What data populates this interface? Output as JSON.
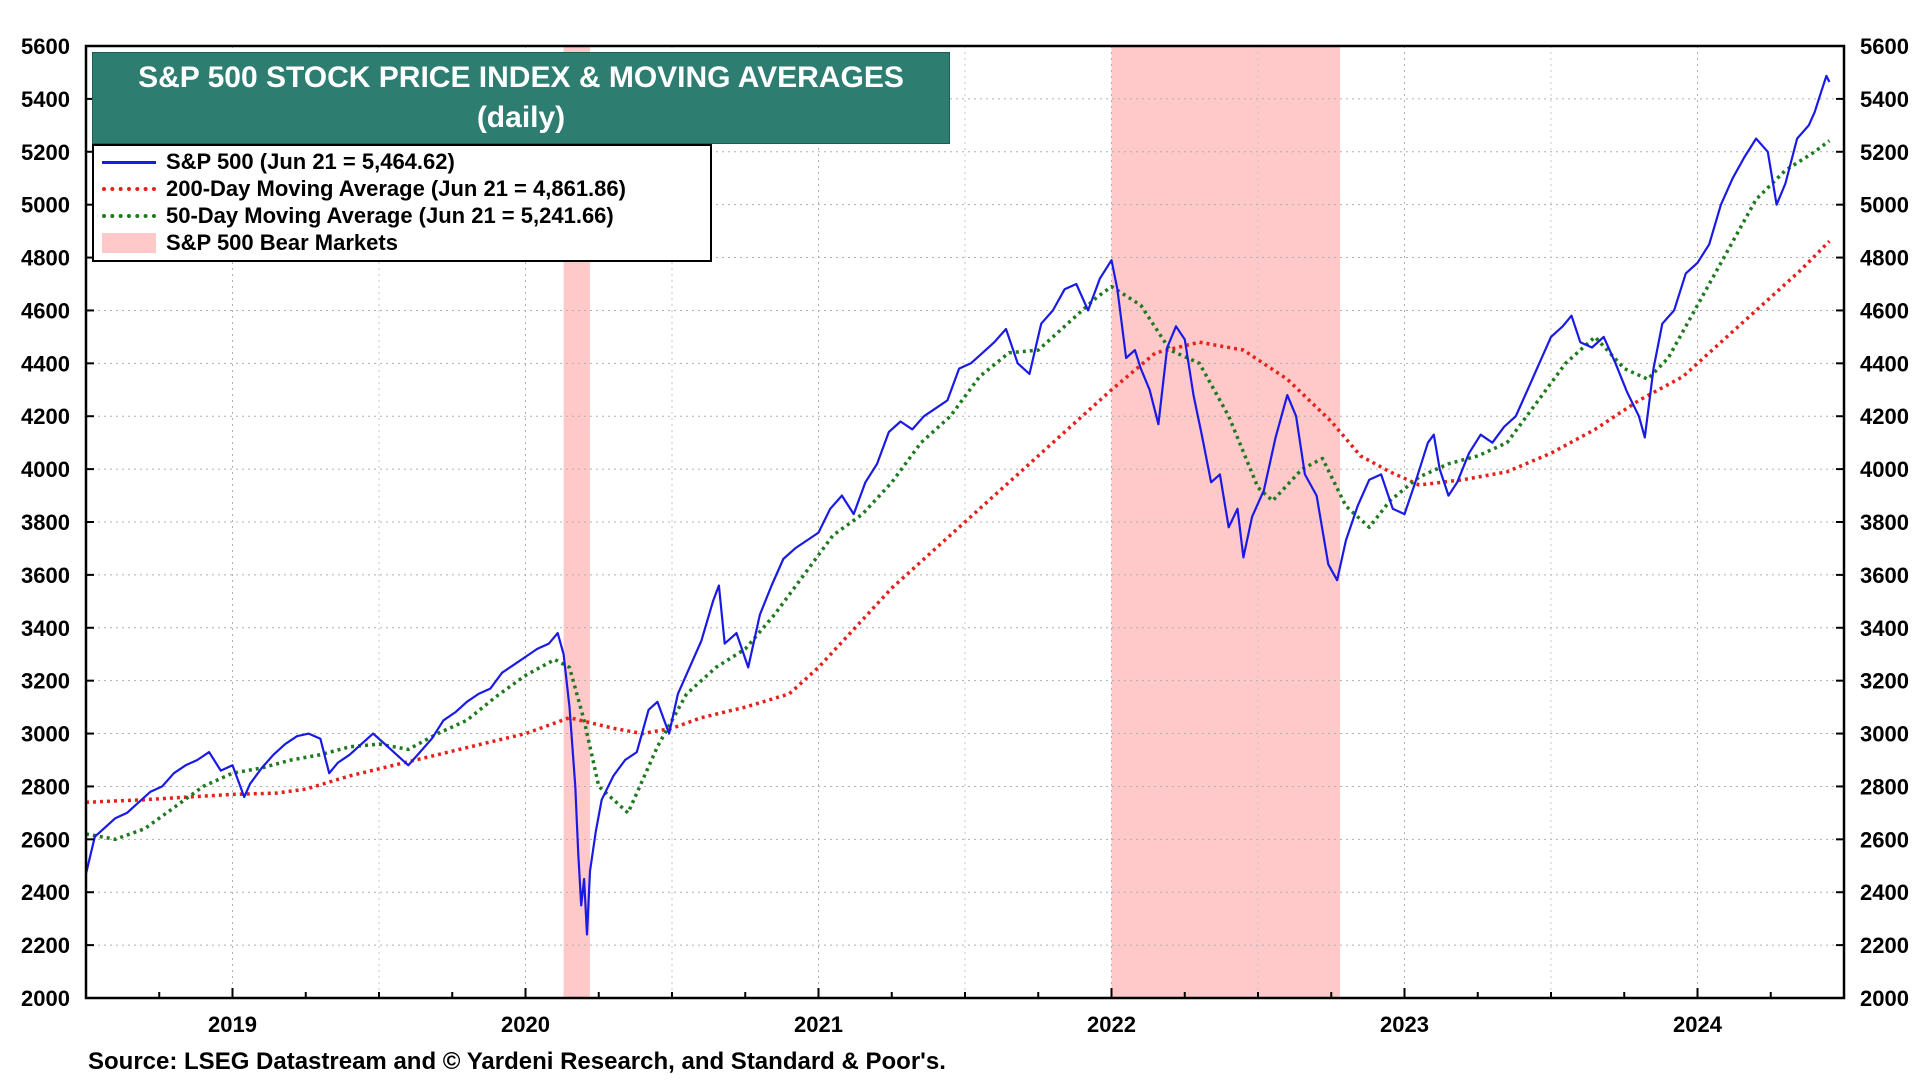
{
  "chart_data": {
    "type": "line",
    "title": "S&P 500 STOCK PRICE INDEX & MOVING AVERAGES",
    "subtitle": "(daily)",
    "xlabel": "",
    "ylabel": "",
    "ylim": [
      2000,
      5600
    ],
    "y_ticks": [
      "2000",
      "2200",
      "2400",
      "2600",
      "2800",
      "3000",
      "3200",
      "3400",
      "3600",
      "3800",
      "4000",
      "4200",
      "4400",
      "4600",
      "4800",
      "5000",
      "5200",
      "5400",
      "5600"
    ],
    "x_range": [
      2018.5,
      2024.5
    ],
    "x_ticks": [
      {
        "value": 2019,
        "label": "2019"
      },
      {
        "value": 2020,
        "label": "2020"
      },
      {
        "value": 2021,
        "label": "2021"
      },
      {
        "value": 2022,
        "label": "2022"
      },
      {
        "value": 2023,
        "label": "2023"
      },
      {
        "value": 2024,
        "label": "2024"
      }
    ],
    "grid": true,
    "legend": [
      {
        "key": "sp500",
        "label": "S&P 500 (Jun 21 = 5,464.62)",
        "style": "solid",
        "color": "#1a1ae6"
      },
      {
        "key": "ma200",
        "label": "200-Day Moving Average (Jun 21 = 4,861.86)",
        "style": "dotted",
        "color": "#e6201a"
      },
      {
        "key": "ma50",
        "label": "50-Day Moving Average (Jun 21 = 5,241.66)",
        "style": "dotted",
        "color": "#1f7a1f"
      },
      {
        "key": "bear",
        "label": "S&P 500 Bear Markets",
        "style": "band",
        "color": "#ffc9c9"
      }
    ],
    "bear_markets": [
      {
        "start": 2020.13,
        "end": 2020.22
      },
      {
        "start": 2022.0,
        "end": 2022.78
      }
    ],
    "series": [
      {
        "name": "S&P 500",
        "color": "#1a1ae6",
        "style": "solid",
        "points": [
          [
            2018.5,
            2470
          ],
          [
            2018.53,
            2610
          ],
          [
            2018.56,
            2640
          ],
          [
            2018.6,
            2680
          ],
          [
            2018.64,
            2700
          ],
          [
            2018.68,
            2740
          ],
          [
            2018.72,
            2780
          ],
          [
            2018.76,
            2800
          ],
          [
            2018.8,
            2850
          ],
          [
            2018.84,
            2880
          ],
          [
            2018.88,
            2900
          ],
          [
            2018.92,
            2930
          ],
          [
            2018.96,
            2860
          ],
          [
            2019.0,
            2880
          ],
          [
            2019.04,
            2760
          ],
          [
            2019.06,
            2810
          ],
          [
            2019.1,
            2870
          ],
          [
            2019.14,
            2920
          ],
          [
            2019.18,
            2960
          ],
          [
            2019.22,
            2990
          ],
          [
            2019.26,
            3000
          ],
          [
            2019.3,
            2980
          ],
          [
            2019.33,
            2850
          ],
          [
            2019.36,
            2890
          ],
          [
            2019.4,
            2920
          ],
          [
            2019.44,
            2960
          ],
          [
            2019.48,
            3000
          ],
          [
            2019.52,
            2960
          ],
          [
            2019.56,
            2920
          ],
          [
            2019.6,
            2880
          ],
          [
            2019.64,
            2930
          ],
          [
            2019.68,
            2980
          ],
          [
            2019.72,
            3050
          ],
          [
            2019.76,
            3080
          ],
          [
            2019.8,
            3120
          ],
          [
            2019.84,
            3150
          ],
          [
            2019.88,
            3170
          ],
          [
            2019.92,
            3230
          ],
          [
            2019.96,
            3260
          ],
          [
            2020.0,
            3290
          ],
          [
            2020.04,
            3320
          ],
          [
            2020.08,
            3340
          ],
          [
            2020.11,
            3380
          ],
          [
            2020.13,
            3300
          ],
          [
            2020.15,
            3100
          ],
          [
            2020.17,
            2800
          ],
          [
            2020.18,
            2550
          ],
          [
            2020.19,
            2350
          ],
          [
            2020.2,
            2450
          ],
          [
            2020.21,
            2240
          ],
          [
            2020.22,
            2480
          ],
          [
            2020.24,
            2630
          ],
          [
            2020.26,
            2750
          ],
          [
            2020.3,
            2840
          ],
          [
            2020.34,
            2900
          ],
          [
            2020.38,
            2930
          ],
          [
            2020.42,
            3090
          ],
          [
            2020.45,
            3120
          ],
          [
            2020.49,
            3000
          ],
          [
            2020.52,
            3150
          ],
          [
            2020.56,
            3250
          ],
          [
            2020.6,
            3350
          ],
          [
            2020.64,
            3500
          ],
          [
            2020.66,
            3560
          ],
          [
            2020.68,
            3340
          ],
          [
            2020.72,
            3380
          ],
          [
            2020.76,
            3250
          ],
          [
            2020.8,
            3450
          ],
          [
            2020.84,
            3560
          ],
          [
            2020.88,
            3660
          ],
          [
            2020.92,
            3700
          ],
          [
            2020.96,
            3730
          ],
          [
            2021.0,
            3760
          ],
          [
            2021.04,
            3850
          ],
          [
            2021.08,
            3900
          ],
          [
            2021.12,
            3830
          ],
          [
            2021.16,
            3950
          ],
          [
            2021.2,
            4020
          ],
          [
            2021.24,
            4140
          ],
          [
            2021.28,
            4180
          ],
          [
            2021.32,
            4150
          ],
          [
            2021.36,
            4200
          ],
          [
            2021.4,
            4230
          ],
          [
            2021.44,
            4260
          ],
          [
            2021.48,
            4380
          ],
          [
            2021.52,
            4400
          ],
          [
            2021.56,
            4440
          ],
          [
            2021.6,
            4480
          ],
          [
            2021.64,
            4530
          ],
          [
            2021.68,
            4400
          ],
          [
            2021.72,
            4360
          ],
          [
            2021.76,
            4550
          ],
          [
            2021.8,
            4600
          ],
          [
            2021.84,
            4680
          ],
          [
            2021.88,
            4700
          ],
          [
            2021.92,
            4600
          ],
          [
            2021.96,
            4720
          ],
          [
            2022.0,
            4790
          ],
          [
            2022.02,
            4680
          ],
          [
            2022.05,
            4420
          ],
          [
            2022.08,
            4450
          ],
          [
            2022.1,
            4380
          ],
          [
            2022.13,
            4300
          ],
          [
            2022.16,
            4170
          ],
          [
            2022.19,
            4460
          ],
          [
            2022.22,
            4540
          ],
          [
            2022.25,
            4490
          ],
          [
            2022.28,
            4280
          ],
          [
            2022.31,
            4120
          ],
          [
            2022.34,
            3950
          ],
          [
            2022.37,
            3980
          ],
          [
            2022.4,
            3780
          ],
          [
            2022.43,
            3850
          ],
          [
            2022.45,
            3666
          ],
          [
            2022.48,
            3820
          ],
          [
            2022.52,
            3920
          ],
          [
            2022.56,
            4120
          ],
          [
            2022.6,
            4280
          ],
          [
            2022.63,
            4200
          ],
          [
            2022.66,
            3980
          ],
          [
            2022.7,
            3900
          ],
          [
            2022.74,
            3640
          ],
          [
            2022.77,
            3580
          ],
          [
            2022.8,
            3730
          ],
          [
            2022.84,
            3860
          ],
          [
            2022.88,
            3960
          ],
          [
            2022.92,
            3980
          ],
          [
            2022.96,
            3850
          ],
          [
            2023.0,
            3830
          ],
          [
            2023.04,
            3960
          ],
          [
            2023.08,
            4100
          ],
          [
            2023.1,
            4130
          ],
          [
            2023.12,
            4000
          ],
          [
            2023.15,
            3900
          ],
          [
            2023.18,
            3950
          ],
          [
            2023.22,
            4060
          ],
          [
            2023.26,
            4130
          ],
          [
            2023.3,
            4100
          ],
          [
            2023.34,
            4160
          ],
          [
            2023.38,
            4200
          ],
          [
            2023.42,
            4300
          ],
          [
            2023.46,
            4400
          ],
          [
            2023.5,
            4500
          ],
          [
            2023.54,
            4540
          ],
          [
            2023.57,
            4580
          ],
          [
            2023.6,
            4480
          ],
          [
            2023.64,
            4460
          ],
          [
            2023.68,
            4500
          ],
          [
            2023.72,
            4400
          ],
          [
            2023.76,
            4290
          ],
          [
            2023.8,
            4200
          ],
          [
            2023.82,
            4120
          ],
          [
            2023.85,
            4380
          ],
          [
            2023.88,
            4550
          ],
          [
            2023.92,
            4600
          ],
          [
            2023.96,
            4740
          ],
          [
            2024.0,
            4780
          ],
          [
            2024.04,
            4850
          ],
          [
            2024.08,
            5000
          ],
          [
            2024.12,
            5100
          ],
          [
            2024.16,
            5180
          ],
          [
            2024.2,
            5250
          ],
          [
            2024.24,
            5200
          ],
          [
            2024.27,
            5000
          ],
          [
            2024.3,
            5080
          ],
          [
            2024.34,
            5250
          ],
          [
            2024.38,
            5300
          ],
          [
            2024.4,
            5350
          ],
          [
            2024.42,
            5420
          ],
          [
            2024.44,
            5487
          ],
          [
            2024.45,
            5464
          ]
        ]
      },
      {
        "name": "200-Day Moving Average",
        "color": "#e6201a",
        "style": "dotted",
        "points": [
          [
            2018.5,
            2740
          ],
          [
            2018.7,
            2750
          ],
          [
            2018.85,
            2760
          ],
          [
            2019.0,
            2770
          ],
          [
            2019.15,
            2775
          ],
          [
            2019.25,
            2790
          ],
          [
            2019.4,
            2840
          ],
          [
            2019.55,
            2880
          ],
          [
            2019.7,
            2920
          ],
          [
            2019.85,
            2960
          ],
          [
            2020.0,
            3000
          ],
          [
            2020.15,
            3060
          ],
          [
            2020.3,
            3020
          ],
          [
            2020.4,
            3000
          ],
          [
            2020.5,
            3020
          ],
          [
            2020.6,
            3060
          ],
          [
            2020.75,
            3100
          ],
          [
            2020.9,
            3150
          ],
          [
            2021.0,
            3250
          ],
          [
            2021.1,
            3370
          ],
          [
            2021.25,
            3550
          ],
          [
            2021.4,
            3700
          ],
          [
            2021.55,
            3850
          ],
          [
            2021.7,
            4000
          ],
          [
            2021.85,
            4150
          ],
          [
            2022.0,
            4300
          ],
          [
            2022.15,
            4440
          ],
          [
            2022.3,
            4480
          ],
          [
            2022.45,
            4450
          ],
          [
            2022.6,
            4340
          ],
          [
            2022.75,
            4180
          ],
          [
            2022.85,
            4050
          ],
          [
            2022.95,
            3990
          ],
          [
            2023.05,
            3940
          ],
          [
            2023.2,
            3960
          ],
          [
            2023.35,
            3990
          ],
          [
            2023.5,
            4060
          ],
          [
            2023.65,
            4150
          ],
          [
            2023.8,
            4260
          ],
          [
            2023.95,
            4350
          ],
          [
            2024.1,
            4500
          ],
          [
            2024.25,
            4650
          ],
          [
            2024.35,
            4750
          ],
          [
            2024.45,
            4862
          ]
        ]
      },
      {
        "name": "50-Day Moving Average",
        "color": "#1f7a1f",
        "style": "dotted",
        "points": [
          [
            2018.5,
            2620
          ],
          [
            2018.6,
            2600
          ],
          [
            2018.7,
            2640
          ],
          [
            2018.8,
            2720
          ],
          [
            2018.9,
            2800
          ],
          [
            2019.0,
            2850
          ],
          [
            2019.1,
            2870
          ],
          [
            2019.2,
            2900
          ],
          [
            2019.3,
            2920
          ],
          [
            2019.4,
            2950
          ],
          [
            2019.5,
            2960
          ],
          [
            2019.6,
            2940
          ],
          [
            2019.7,
            3000
          ],
          [
            2019.8,
            3050
          ],
          [
            2019.9,
            3140
          ],
          [
            2020.0,
            3220
          ],
          [
            2020.1,
            3280
          ],
          [
            2020.15,
            3250
          ],
          [
            2020.2,
            3050
          ],
          [
            2020.25,
            2800
          ],
          [
            2020.35,
            2700
          ],
          [
            2020.45,
            2950
          ],
          [
            2020.55,
            3150
          ],
          [
            2020.65,
            3250
          ],
          [
            2020.75,
            3320
          ],
          [
            2020.85,
            3450
          ],
          [
            2020.95,
            3600
          ],
          [
            2021.05,
            3750
          ],
          [
            2021.15,
            3830
          ],
          [
            2021.25,
            3950
          ],
          [
            2021.35,
            4100
          ],
          [
            2021.45,
            4200
          ],
          [
            2021.55,
            4350
          ],
          [
            2021.65,
            4440
          ],
          [
            2021.75,
            4450
          ],
          [
            2021.85,
            4550
          ],
          [
            2021.95,
            4650
          ],
          [
            2022.0,
            4690
          ],
          [
            2022.1,
            4620
          ],
          [
            2022.2,
            4450
          ],
          [
            2022.3,
            4400
          ],
          [
            2022.4,
            4200
          ],
          [
            2022.5,
            3930
          ],
          [
            2022.55,
            3880
          ],
          [
            2022.65,
            4000
          ],
          [
            2022.72,
            4040
          ],
          [
            2022.8,
            3860
          ],
          [
            2022.88,
            3780
          ],
          [
            2022.95,
            3880
          ],
          [
            2023.05,
            3970
          ],
          [
            2023.15,
            4020
          ],
          [
            2023.25,
            4050
          ],
          [
            2023.35,
            4100
          ],
          [
            2023.45,
            4250
          ],
          [
            2023.55,
            4400
          ],
          [
            2023.65,
            4500
          ],
          [
            2023.75,
            4380
          ],
          [
            2023.83,
            4340
          ],
          [
            2023.9,
            4420
          ],
          [
            2024.0,
            4620
          ],
          [
            2024.1,
            4820
          ],
          [
            2024.2,
            5020
          ],
          [
            2024.3,
            5130
          ],
          [
            2024.4,
            5200
          ],
          [
            2024.45,
            5242
          ]
        ]
      }
    ],
    "source": "Source: LSEG Datastream and © Yardeni Research, and Standard & Poor's."
  }
}
